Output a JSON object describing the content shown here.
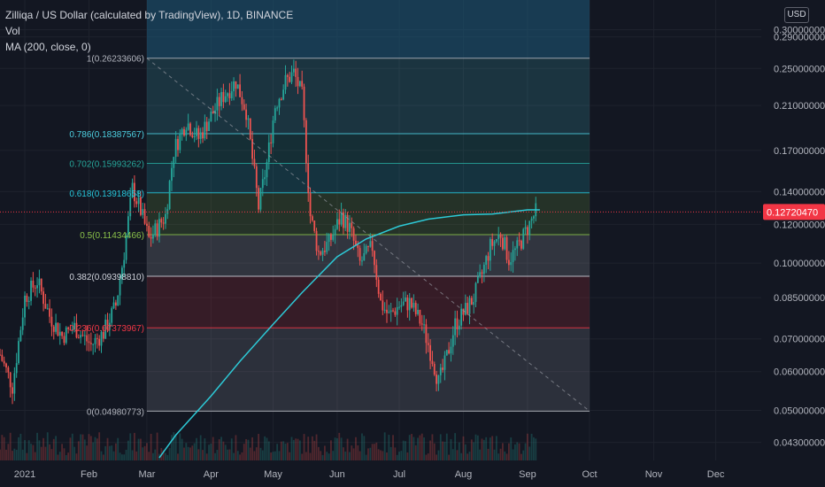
{
  "header": {
    "title": "Zilliqa / US Dollar (calculated by TradingView), 1D, BINANCE",
    "vol_label": "Vol",
    "ma_label": "MA (200, close, 0)"
  },
  "currency_badge": "USD",
  "last_price_label": "0.12720470",
  "colors": {
    "background": "#131722",
    "grid": "#1e222d",
    "candle_up": "#26a69a",
    "candle_down": "#ef5350",
    "ma_line": "#2dc9d6",
    "price_line": "#f23645",
    "price_badge": "#f23645"
  },
  "chart_data": {
    "type": "candlestick",
    "symbol": "Zilliqa / US Dollar",
    "interval": "1D",
    "exchange": "BINANCE",
    "y_scale": "log",
    "ylim": [
      0.0395,
      0.345
    ],
    "y_ticks": [
      {
        "value": 0.3,
        "label": "0.30000000"
      },
      {
        "value": 0.29,
        "label": "0.29000000"
      },
      {
        "value": 0.25,
        "label": "0.25000000"
      },
      {
        "value": 0.21,
        "label": "0.21000000"
      },
      {
        "value": 0.17,
        "label": "0.17000000"
      },
      {
        "value": 0.14,
        "label": "0.14000000"
      },
      {
        "value": 0.12,
        "label": "0.12000000"
      },
      {
        "value": 0.1,
        "label": "0.10000000"
      },
      {
        "value": 0.085,
        "label": "0.08500000"
      },
      {
        "value": 0.07,
        "label": "0.07000000"
      },
      {
        "value": 0.06,
        "label": "0.06000000"
      },
      {
        "value": 0.05,
        "label": "0.05000000"
      },
      {
        "value": 0.043,
        "label": "0.04300000"
      }
    ],
    "x_range": [
      "2020-12-20",
      "2021-12-23"
    ],
    "x_ticks": [
      {
        "date": "2021-01-01",
        "label": "2021"
      },
      {
        "date": "2021-02-01",
        "label": "Feb"
      },
      {
        "date": "2021-03-01",
        "label": "Mar"
      },
      {
        "date": "2021-04-01",
        "label": "Apr"
      },
      {
        "date": "2021-05-01",
        "label": "May"
      },
      {
        "date": "2021-06-01",
        "label": "Jun"
      },
      {
        "date": "2021-07-01",
        "label": "Jul"
      },
      {
        "date": "2021-08-01",
        "label": "Aug"
      },
      {
        "date": "2021-09-01",
        "label": "Sep"
      },
      {
        "date": "2021-10-01",
        "label": "Oct"
      },
      {
        "date": "2021-11-01",
        "label": "Nov"
      },
      {
        "date": "2021-12-01",
        "label": "Dec"
      }
    ],
    "last_price": 0.1272047,
    "fibonacci": {
      "start": {
        "date": "2021-03-01",
        "price": 0.26233606
      },
      "end": {
        "date": "2021-10-01",
        "price": 0.04980773
      },
      "levels": [
        {
          "ratio": "1",
          "price": 0.26233606,
          "label": "1(0.26233606)",
          "color": "#b2b5be"
        },
        {
          "ratio": "0.786",
          "price": 0.18387567,
          "label": "0.786(0.18387567)",
          "color": "#4dd0e1"
        },
        {
          "ratio": "0.702",
          "price": 0.15993262,
          "label": "0.702(0.15993262)",
          "color": "#26a69a"
        },
        {
          "ratio": "0.618",
          "price": 0.13918658,
          "label": "0.618(0.13918658)",
          "color": "#26c6da"
        },
        {
          "ratio": "0.5",
          "price": 0.11434466,
          "label": "0.5(0.11434466)",
          "color": "#8bc34a"
        },
        {
          "ratio": "0.382",
          "price": 0.0939881,
          "label": "0.382(0.09398810)",
          "color": "#d1d4dc"
        },
        {
          "ratio": "0.236",
          "price": 0.07373967,
          "label": "0.236(0.07373967)",
          "color": "#f23645"
        },
        {
          "ratio": "0",
          "price": 0.04980773,
          "label": "0(0.04980773)",
          "color": "#b2b5be"
        }
      ],
      "top_zone_color": "#1e5a7a"
    },
    "price_path": [
      [
        "2020-12-20",
        0.065
      ],
      [
        "2020-12-26",
        0.056
      ],
      [
        "2021-01-01",
        0.085
      ],
      [
        "2021-01-07",
        0.092
      ],
      [
        "2021-01-13",
        0.078
      ],
      [
        "2021-01-19",
        0.071
      ],
      [
        "2021-01-25",
        0.074
      ],
      [
        "2021-02-02",
        0.068
      ],
      [
        "2021-02-08",
        0.072
      ],
      [
        "2021-02-14",
        0.082
      ],
      [
        "2021-02-18",
        0.105
      ],
      [
        "2021-02-22",
        0.142
      ],
      [
        "2021-02-26",
        0.128
      ],
      [
        "2021-03-02",
        0.112
      ],
      [
        "2021-03-06",
        0.118
      ],
      [
        "2021-03-10",
        0.125
      ],
      [
        "2021-03-14",
        0.17
      ],
      [
        "2021-03-20",
        0.195
      ],
      [
        "2021-03-26",
        0.18
      ],
      [
        "2021-04-01",
        0.2
      ],
      [
        "2021-04-07",
        0.22
      ],
      [
        "2021-04-13",
        0.235
      ],
      [
        "2021-04-18",
        0.205
      ],
      [
        "2021-04-24",
        0.13
      ],
      [
        "2021-04-28",
        0.16
      ],
      [
        "2021-05-02",
        0.21
      ],
      [
        "2021-05-07",
        0.235
      ],
      [
        "2021-05-11",
        0.245
      ],
      [
        "2021-05-15",
        0.22
      ],
      [
        "2021-05-19",
        0.125
      ],
      [
        "2021-05-23",
        0.105
      ],
      [
        "2021-05-28",
        0.11
      ],
      [
        "2021-06-03",
        0.125
      ],
      [
        "2021-06-07",
        0.118
      ],
      [
        "2021-06-12",
        0.1
      ],
      [
        "2021-06-18",
        0.108
      ],
      [
        "2021-06-22",
        0.083
      ],
      [
        "2021-06-26",
        0.078
      ],
      [
        "2021-07-01",
        0.082
      ],
      [
        "2021-07-06",
        0.083
      ],
      [
        "2021-07-12",
        0.075
      ],
      [
        "2021-07-17",
        0.064
      ],
      [
        "2021-07-20",
        0.057
      ],
      [
        "2021-07-23",
        0.062
      ],
      [
        "2021-07-28",
        0.075
      ],
      [
        "2021-08-02",
        0.08
      ],
      [
        "2021-08-06",
        0.085
      ],
      [
        "2021-08-10",
        0.095
      ],
      [
        "2021-08-14",
        0.108
      ],
      [
        "2021-08-19",
        0.115
      ],
      [
        "2021-08-23",
        0.102
      ],
      [
        "2021-08-27",
        0.107
      ],
      [
        "2021-09-01",
        0.118
      ],
      [
        "2021-09-05",
        0.1272
      ]
    ],
    "ma200_path": [
      [
        "2021-03-07",
        0.04
      ],
      [
        "2021-03-15",
        0.0445
      ],
      [
        "2021-04-01",
        0.0535
      ],
      [
        "2021-04-15",
        0.063
      ],
      [
        "2021-05-01",
        0.075
      ],
      [
        "2021-05-15",
        0.087
      ],
      [
        "2021-06-01",
        0.103
      ],
      [
        "2021-06-15",
        0.112
      ],
      [
        "2021-07-01",
        0.119
      ],
      [
        "2021-07-15",
        0.123
      ],
      [
        "2021-08-01",
        0.1255
      ],
      [
        "2021-08-15",
        0.126
      ],
      [
        "2021-09-01",
        0.1285
      ],
      [
        "2021-09-07",
        0.1285
      ]
    ]
  }
}
